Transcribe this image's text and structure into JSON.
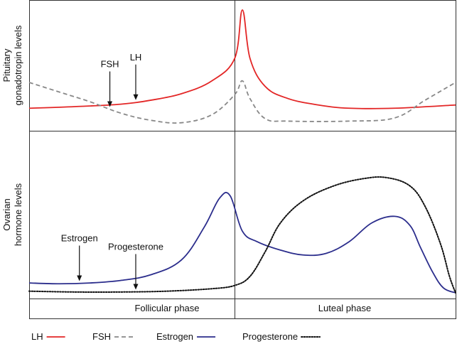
{
  "chart_data": {
    "type": "line",
    "x": {
      "range": [
        0,
        28
      ]
    },
    "panels": [
      {
        "id": "pituitary",
        "ylabel_line1": "Pituitary",
        "ylabel_line2": "gonadotropin levels",
        "series": [
          {
            "key": "lh",
            "name": "LH",
            "color": "#e32626",
            "dash": "solid",
            "points": [
              [
                0,
                28
              ],
              [
                3,
                30
              ],
              [
                6,
                33
              ],
              [
                8,
                38
              ],
              [
                10,
                46
              ],
              [
                12,
                62
              ],
              [
                13.5,
                90
              ],
              [
                14,
                150
              ],
              [
                14.5,
                90
              ],
              [
                15.5,
                55
              ],
              [
                17,
                40
              ],
              [
                19,
                32
              ],
              [
                21,
                28
              ],
              [
                24,
                28
              ],
              [
                28,
                32
              ]
            ]
          },
          {
            "key": "fsh",
            "name": "FSH",
            "color": "#888888",
            "dash": "dashed",
            "points": [
              [
                0,
                60
              ],
              [
                2,
                48
              ],
              [
                4,
                36
              ],
              [
                6,
                22
              ],
              [
                8,
                13
              ],
              [
                10,
                10
              ],
              [
                12,
                20
              ],
              [
                13.5,
                45
              ],
              [
                14,
                62
              ],
              [
                14.5,
                40
              ],
              [
                15.5,
                15
              ],
              [
                17,
                12
              ],
              [
                21,
                12
              ],
              [
                24,
                16
              ],
              [
                26,
                38
              ],
              [
                28,
                60
              ]
            ]
          }
        ],
        "annotations": [
          {
            "text": "FSH",
            "series": "fsh",
            "x": 5.3
          },
          {
            "text": "LH",
            "series": "lh",
            "x": 7.0
          }
        ]
      },
      {
        "id": "ovarian",
        "ylabel_line1": "Ovarian",
        "ylabel_line2": "hormone levels",
        "series": [
          {
            "key": "estrogen",
            "name": "Estrogen",
            "color": "#2b2d8c",
            "dash": "solid",
            "points": [
              [
                0,
                12
              ],
              [
                2,
                11
              ],
              [
                4,
                12
              ],
              [
                6,
                15
              ],
              [
                8,
                22
              ],
              [
                10,
                40
              ],
              [
                11.5,
                80
              ],
              [
                12.5,
                115
              ],
              [
                13.2,
                118
              ],
              [
                14,
                75
              ],
              [
                15,
                62
              ],
              [
                16.5,
                52
              ],
              [
                18,
                46
              ],
              [
                19.5,
                48
              ],
              [
                21,
                62
              ],
              [
                22.5,
                85
              ],
              [
                24,
                93
              ],
              [
                25,
                82
              ],
              [
                25.7,
                55
              ],
              [
                26.5,
                25
              ],
              [
                27.2,
                6
              ],
              [
                28,
                0
              ]
            ]
          },
          {
            "key": "progesterone",
            "name": "Progesterone",
            "color": "#111111",
            "dash": "dotted",
            "points": [
              [
                0,
                2
              ],
              [
                3,
                1
              ],
              [
                6,
                1
              ],
              [
                9,
                2
              ],
              [
                12,
                5
              ],
              [
                13.5,
                9
              ],
              [
                14.5,
                20
              ],
              [
                15.5,
                50
              ],
              [
                16.5,
                85
              ],
              [
                18,
                112
              ],
              [
                20,
                130
              ],
              [
                22,
                139
              ],
              [
                23.5,
                140
              ],
              [
                25,
                130
              ],
              [
                26,
                105
              ],
              [
                27,
                60
              ],
              [
                27.6,
                20
              ],
              [
                28,
                0
              ]
            ]
          }
        ],
        "annotations": [
          {
            "text": "Estrogen",
            "series": "estrogen",
            "x": 3.3
          },
          {
            "text": "Progesterone",
            "series": "progesterone",
            "x": 7.0
          }
        ]
      }
    ],
    "phases": [
      "Follicular phase",
      "Luteal phase"
    ],
    "legend": {
      "placement": "bottom",
      "entries": [
        {
          "name": "LH",
          "color": "#e32626",
          "dash": "solid"
        },
        {
          "name": "FSH",
          "color": "#888888",
          "dash": "dashed"
        },
        {
          "name": "Estrogen",
          "color": "#2b2d8c",
          "dash": "solid"
        },
        {
          "name": "Progesterone",
          "color": "#111111",
          "dash": "dotted"
        }
      ]
    }
  }
}
